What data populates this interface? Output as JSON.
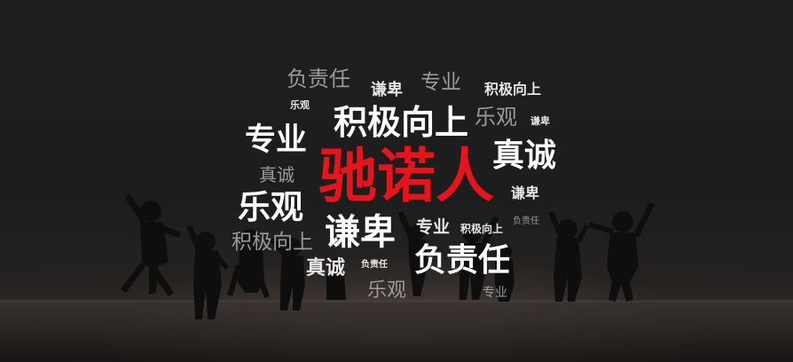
{
  "banner": {
    "brand": "驰诺人",
    "words": {
      "w01": "负责任",
      "w02": "谦卑",
      "w03": "专业",
      "w04": "积极向上",
      "w05": "乐观",
      "w06": "积极向上",
      "w07": "乐观",
      "w08": "谦卑",
      "w09": "专业",
      "w10": "真诚",
      "w11": "真诚",
      "w12": "谦卑",
      "w13": "乐观",
      "w14": "负责任",
      "w15": "积极向上",
      "w16": "谦卑",
      "w17": "专业",
      "w18": "积极向上",
      "w19": "真诚",
      "w20": "负责任",
      "w21": "负责任",
      "w22": "乐观",
      "w23": "专业"
    },
    "colors": {
      "brand": "#e8141b",
      "primary": "#ffffff",
      "secondary": "#9a9a9a",
      "background": "#1c1c1c"
    }
  }
}
